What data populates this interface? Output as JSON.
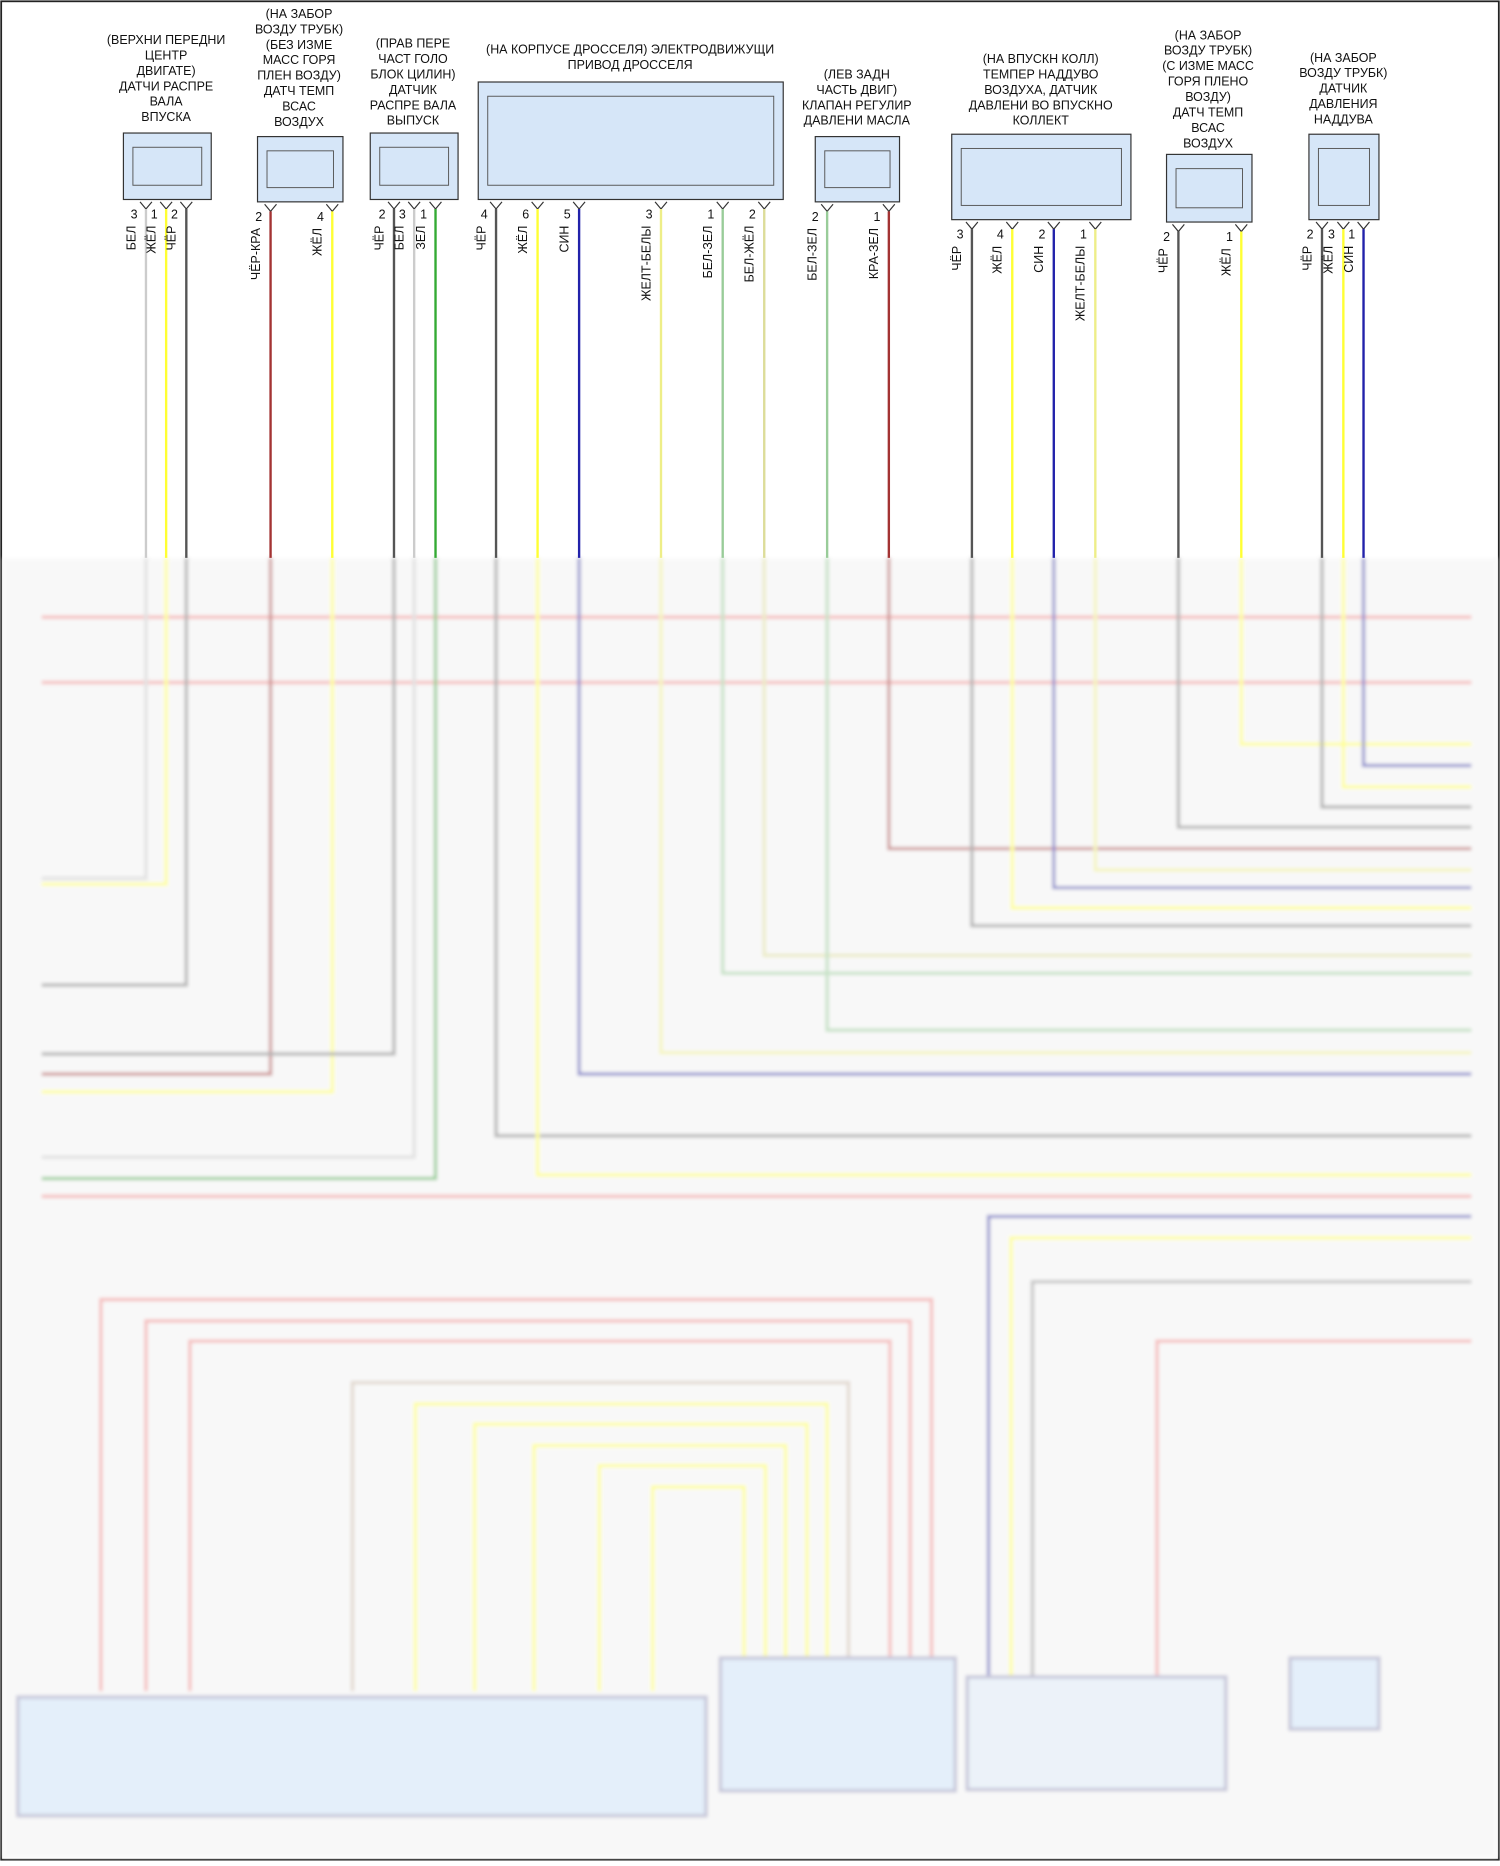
{
  "components": [
    {
      "label": [
        "(ВЕРХНИ ПЕРЕДНИ",
        "ЦЕНТР",
        "ДВИГАТЕ)",
        "ДАТЧИ РАСПРЕ",
        "ВАЛА",
        "ВПУСКА"
      ],
      "pins": [
        {
          "number": "3",
          "wire": "БЕЛ",
          "color": "#cccccc"
        },
        {
          "number": "1",
          "wire": "ЖЁЛ",
          "color": "#ffff33"
        },
        {
          "number": "2",
          "wire": "ЧЁР",
          "color": "#555555"
        }
      ]
    },
    {
      "label": [
        "(НА ЗАБОР",
        "ВОЗДУ ТРУБК)",
        "(БЕЗ ИЗМЕ",
        "МАСС ГОРЯ",
        "ПЛЕН ВОЗДУ)",
        "ДАТЧ ТЕМП",
        "ВСАС",
        "ВОЗДУХ"
      ],
      "pins": [
        {
          "number": "2",
          "wire": "ЧЁР-КРА",
          "color": "#a33333"
        },
        {
          "number": "4",
          "wire": "ЖЁЛ",
          "color": "#ffff33"
        }
      ]
    },
    {
      "label": [
        "(ПРАВ ПЕРЕ",
        "ЧАСТ ГОЛО",
        "БЛОК ЦИЛИН)",
        "ДАТЧИК",
        "РАСПРЕ ВАЛА",
        "ВЫПУСК"
      ],
      "pins": [
        {
          "number": "2",
          "wire": "ЧЁР",
          "color": "#555555"
        },
        {
          "number": "3",
          "wire": "БЕЛ",
          "color": "#cccccc"
        },
        {
          "number": "1",
          "wire": "ЗЕЛ",
          "color": "#33aa33"
        }
      ]
    },
    {
      "label": [
        "(НА КОРПУСЕ ДРОССЕЛЯ) ЭЛЕКТРОДВИЖУЩИ",
        "ПРИВОД ДРОССЕЛЯ"
      ],
      "pins": [
        {
          "number": "4",
          "wire": "ЧЁР",
          "color": "#555555"
        },
        {
          "number": "6",
          "wire": "ЖЁЛ",
          "color": "#ffff33"
        },
        {
          "number": "5",
          "wire": "СИН",
          "color": "#2222aa"
        },
        {
          "number": "3",
          "wire": "ЖЕЛТ-БЕЛЫ",
          "color": "#eeee88"
        },
        {
          "number": "1",
          "wire": "БЕЛ-ЗЕЛ",
          "color": "#99cc99"
        },
        {
          "number": "2",
          "wire": "БЕЛ-ЖЁЛ",
          "color": "#dddd99"
        }
      ]
    },
    {
      "label": [
        "(ЛЕВ ЗАДН",
        "ЧАСТЬ ДВИГ)",
        "КЛАПАН РЕГУЛИР",
        "ДАВЛЕНИ МАСЛА"
      ],
      "pins": [
        {
          "number": "2",
          "wire": "БЕЛ-ЗЕЛ",
          "color": "#99cc99"
        },
        {
          "number": "1",
          "wire": "КРА-ЗЕЛ",
          "color": "#a33333"
        }
      ]
    },
    {
      "label": [
        "(НА ВПУСКН КОЛЛ)",
        "ТЕМПЕР НАДДУВО",
        "ВОЗДУХА, ДАТЧИК",
        "ДАВЛЕНИ ВО ВПУСКНО",
        "КОЛЛЕКТ"
      ],
      "pins": [
        {
          "number": "3",
          "wire": "ЧЁР",
          "color": "#555555"
        },
        {
          "number": "4",
          "wire": "ЖЁЛ",
          "color": "#ffff33"
        },
        {
          "number": "2",
          "wire": "СИН",
          "color": "#2222aa"
        },
        {
          "number": "1",
          "wire": "ЖЕЛТ-БЕЛЫ",
          "color": "#eeee88"
        }
      ]
    },
    {
      "label": [
        "(НА ЗАБОР",
        "ВОЗДУ ТРУБК)",
        "(С ИЗМЕ МАСС",
        "ГОРЯ ПЛЕНО",
        "ВОЗДУ)",
        "ДАТЧ ТЕМП",
        "ВСАС",
        "ВОЗДУХ"
      ],
      "pins": [
        {
          "number": "2",
          "wire": "ЧЁР",
          "color": "#555555"
        },
        {
          "number": "1",
          "wire": "ЖЁЛ",
          "color": "#ffff33"
        }
      ]
    },
    {
      "label": [
        "(НА ЗАБОР",
        "ВОЗДУ ТРУБК)",
        "ДАТЧИК",
        "ДАВЛЕНИЯ",
        "НАДДУВА"
      ],
      "pins": [
        {
          "number": "2",
          "wire": "ЧЁР",
          "color": "#555555"
        },
        {
          "number": "3",
          "wire": "ЖЁЛ",
          "color": "#ffff33"
        },
        {
          "number": "1",
          "wire": "СИН",
          "color": "#2222aa"
        }
      ]
    }
  ]
}
